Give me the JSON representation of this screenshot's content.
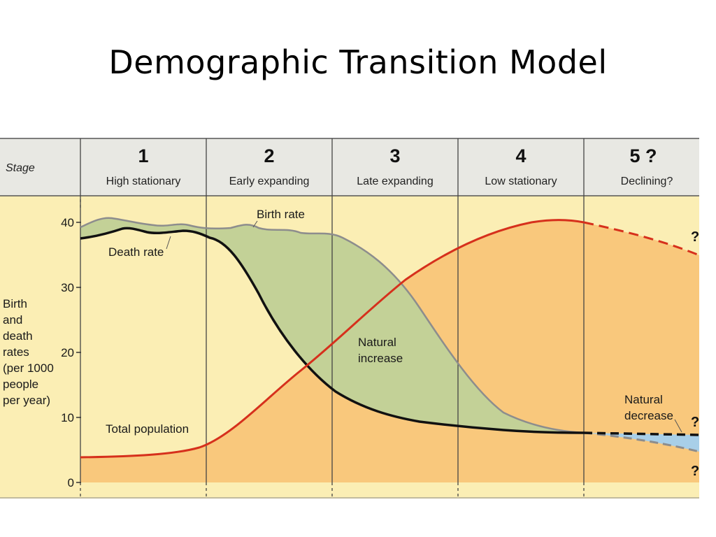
{
  "title": "Demographic Transition Model",
  "stage_label": "Stage",
  "stages": [
    {
      "number": "1",
      "name": "High stationary"
    },
    {
      "number": "2",
      "name": "Early expanding"
    },
    {
      "number": "3",
      "name": "Late expanding"
    },
    {
      "number": "4",
      "name": "Low stationary"
    },
    {
      "number": "5 ?",
      "name": "Declining?"
    }
  ],
  "y_axis": {
    "label_lines": [
      "Birth",
      "and",
      "death",
      "rates",
      "(per 1000",
      "people",
      "per year)"
    ],
    "ticks": [
      "40",
      "30",
      "20",
      "10",
      "0"
    ]
  },
  "curve_labels": {
    "birth_rate": "Birth rate",
    "death_rate": "Death rate",
    "natural_increase_1": "Natural",
    "natural_increase_2": "increase",
    "natural_decrease_1": "Natural",
    "natural_decrease_2": "decrease",
    "total_population": "Total population"
  },
  "question_marks": [
    "?",
    "?",
    "?"
  ],
  "colors": {
    "background": "#fbeeb4",
    "header": "#e8e8e3",
    "population_fill": "#f9c87c",
    "natural_increase_fill": "#c3d197",
    "natural_decrease_fill": "#a8cfe8",
    "birth_line": "#8d8d8d",
    "death_line": "#111111",
    "population_line": "#d6301c"
  }
}
